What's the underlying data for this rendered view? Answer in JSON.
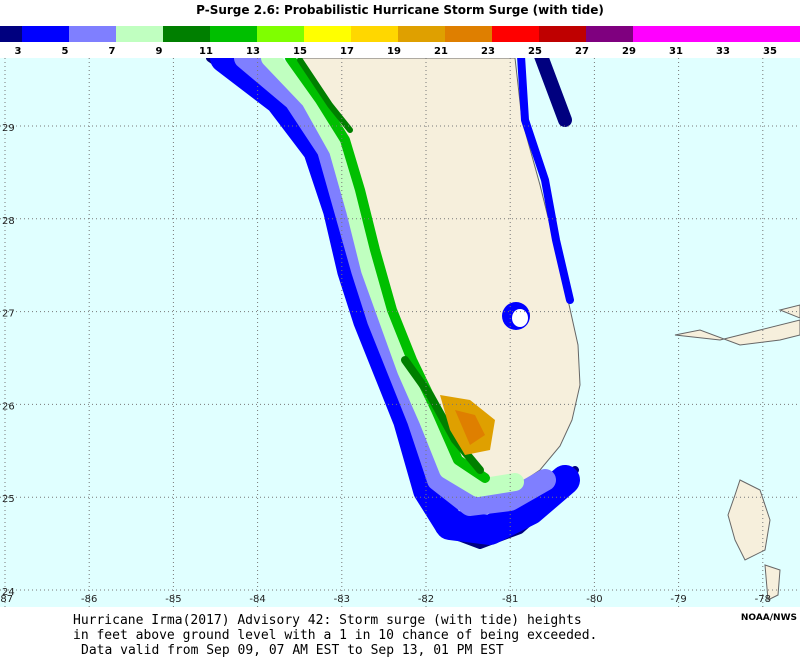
{
  "header": {
    "title": "P-Surge 2.6: Probabilistic Hurricane Storm Surge (with tide)"
  },
  "legend": {
    "colors": [
      "#00007f",
      "#0000ff",
      "#7f7fff",
      "#c0ffc0",
      "#007f00",
      "#00bf00",
      "#7fff00",
      "#ffff00",
      "#ffd700",
      "#dfa000",
      "#df7f00",
      "#ff0000",
      "#bf0000",
      "#7f007f",
      "#ff00ff",
      "#ff00ff",
      "#ff00ff",
      "#ff00ff"
    ],
    "labels": [
      "3",
      "5",
      "7",
      "9",
      "11",
      "13",
      "15",
      "17",
      "19",
      "21",
      "23",
      "25",
      "27",
      "29",
      "31",
      "33",
      "35"
    ]
  },
  "map": {
    "lat_ticks": [
      24,
      25,
      26,
      27,
      28,
      29
    ],
    "lon_ticks": [
      -87,
      -86,
      -85,
      -84,
      -83,
      -82,
      -81,
      -80,
      -79,
      -78
    ]
  },
  "caption": {
    "lines": [
      "Hurricane Irma(2017) Advisory 42: Storm surge (with tide) heights",
      "in feet above ground level with a 1 in 10 chance of being exceeded.",
      "Data valid from Sep 09, 07 AM EST to Sep 13, 01 PM EST"
    ]
  },
  "credit": "NOAA/NWS"
}
